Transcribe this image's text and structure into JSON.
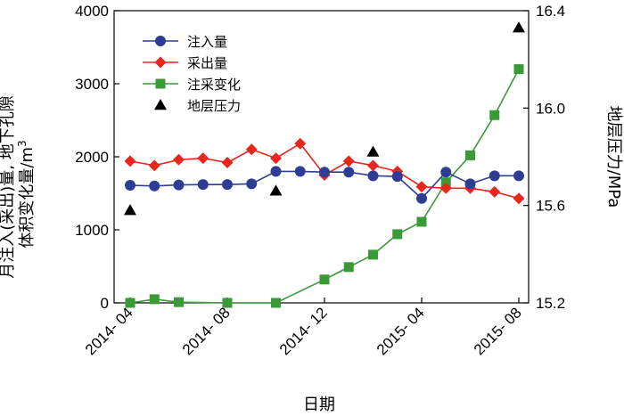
{
  "chart_data": {
    "type": "line",
    "xlabel": "日期",
    "ylabel_left_line1": "月注入(采出)量, 地下孔隙",
    "ylabel_left_line2": "体积变化量/m",
    "ylabel_left_superscript": "3",
    "ylabel_right": "地层压力/MPa",
    "x": [
      "2014-04",
      "2014-05",
      "2014-06",
      "2014-07",
      "2014-08",
      "2014-09",
      "2014-10",
      "2014-11",
      "2014-12",
      "2015-01",
      "2015-02",
      "2015-03",
      "2015-04",
      "2015-05",
      "2015-06",
      "2015-07",
      "2015-08"
    ],
    "x_tick_labels": [
      "2014- 04",
      "2014- 08",
      "2014- 12",
      "2015- 04",
      "2015- 08"
    ],
    "ylim_left": [
      0,
      4000
    ],
    "y_ticks_left": [
      "0",
      "1000",
      "2000",
      "3000",
      "4000"
    ],
    "ylim_right": [
      15.2,
      16.4
    ],
    "y_ticks_right": [
      "15.2",
      "15.6",
      "16.0",
      "16.4"
    ],
    "grid": false,
    "legend_position": "top-left",
    "series": [
      {
        "name": "注入量",
        "axis": "left",
        "color": "#2e3d94",
        "marker": "circle",
        "x": [
          "2014-04",
          "2014-05",
          "2014-06",
          "2014-07",
          "2014-08",
          "2014-09",
          "2014-10",
          "2014-11",
          "2014-12",
          "2015-01",
          "2015-02",
          "2015-03",
          "2015-04",
          "2015-05",
          "2015-06",
          "2015-07",
          "2015-08"
        ],
        "values": [
          1610,
          1600,
          1615,
          1620,
          1620,
          1630,
          1800,
          1800,
          1790,
          1790,
          1740,
          1730,
          1430,
          1790,
          1630,
          1740,
          1740
        ]
      },
      {
        "name": "采出量",
        "axis": "left",
        "color": "#e8261c",
        "marker": "diamond",
        "x": [
          "2014-04",
          "2014-05",
          "2014-06",
          "2014-07",
          "2014-08",
          "2014-09",
          "2014-10",
          "2014-11",
          "2014-12",
          "2015-01",
          "2015-02",
          "2015-03",
          "2015-04",
          "2015-05",
          "2015-06",
          "2015-07",
          "2015-08"
        ],
        "values": [
          1940,
          1880,
          1960,
          1980,
          1920,
          2100,
          1980,
          2180,
          1750,
          1940,
          1880,
          1800,
          1590,
          1570,
          1570,
          1520,
          1430
        ]
      },
      {
        "name": "注采变化",
        "axis": "left",
        "color": "#3a9a38",
        "marker": "square",
        "x": [
          "2014-04",
          "2014-05",
          "2014-06",
          "2014-08",
          "2014-10",
          "2014-12",
          "2015-01",
          "2015-02",
          "2015-03",
          "2015-04",
          "2015-05",
          "2015-06",
          "2015-07",
          "2015-08"
        ],
        "values": [
          0,
          50,
          10,
          0,
          0,
          320,
          490,
          660,
          940,
          1110,
          1650,
          2020,
          2570,
          3200
        ]
      },
      {
        "name": "地层压力",
        "axis": "right",
        "color": "#000000",
        "marker": "triangle",
        "line": false,
        "x": [
          "2014-04",
          "2014-10",
          "2015-02",
          "2015-08"
        ],
        "values": [
          15.58,
          15.66,
          15.82,
          16.33
        ]
      }
    ]
  }
}
